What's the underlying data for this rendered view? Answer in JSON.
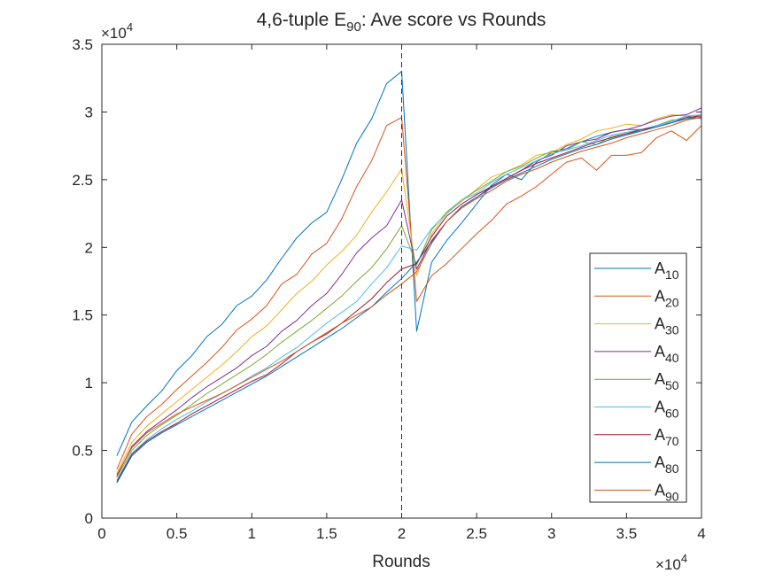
{
  "chart_data": {
    "type": "line",
    "title": {
      "text": "4,6-tuple E",
      "subscript": "90",
      "suffix": ": Ave score vs Rounds"
    },
    "xlabel": "Rounds",
    "ylabel": "",
    "x_exponent_label": "×10",
    "x_exponent_power": "4",
    "y_exponent_label": "×10",
    "y_exponent_power": "4",
    "xlim": [
      0,
      40000
    ],
    "ylim": [
      0,
      35000
    ],
    "x_ticks": [
      0,
      5000,
      10000,
      15000,
      20000,
      25000,
      30000,
      35000,
      40000
    ],
    "x_tick_labels": [
      "0",
      "0.5",
      "1",
      "1.5",
      "2",
      "2.5",
      "3",
      "3.5",
      "4"
    ],
    "y_ticks": [
      0,
      5000,
      10000,
      15000,
      20000,
      25000,
      30000,
      35000
    ],
    "y_tick_labels": [
      "0",
      "0.5",
      "1",
      "1.5",
      "2",
      "2.5",
      "3",
      "3.5"
    ],
    "grid": false,
    "legend_position": "bottom-right",
    "vertical_line": {
      "x": 20000,
      "style": "dashed"
    },
    "x": [
      1000,
      2000,
      3000,
      4000,
      5000,
      6000,
      7000,
      8000,
      9000,
      10000,
      11000,
      12000,
      13000,
      14000,
      15000,
      16000,
      17000,
      18000,
      19000,
      20000,
      21000,
      22000,
      23000,
      24000,
      25000,
      26000,
      27000,
      28000,
      29000,
      30000,
      31000,
      32000,
      33000,
      34000,
      35000,
      36000,
      37000,
      38000,
      39000,
      40000
    ],
    "series": [
      {
        "name": "A",
        "sub": "10",
        "color": "#0072BD",
        "values": [
          4600,
          7100,
          8300,
          9400,
          10900,
          12000,
          13400,
          14300,
          15700,
          16400,
          17600,
          19200,
          20700,
          21800,
          22600,
          25000,
          27700,
          29500,
          32100,
          33000,
          13800,
          18900,
          20500,
          21800,
          23200,
          24600,
          25400,
          25000,
          26300,
          27000,
          27300,
          27800,
          28200,
          28500,
          28700,
          28700,
          29000,
          29300,
          29700,
          29500
        ]
      },
      {
        "name": "A",
        "sub": "20",
        "color": "#D95319",
        "values": [
          3600,
          6200,
          7500,
          8400,
          9500,
          10500,
          11500,
          12600,
          13900,
          14700,
          15700,
          17300,
          18000,
          19500,
          20300,
          22100,
          24500,
          26400,
          29000,
          29600,
          16000,
          17900,
          18800,
          19900,
          21000,
          22000,
          23200,
          23800,
          24500,
          25400,
          26300,
          26600,
          25700,
          26800,
          26800,
          27000,
          28100,
          28600,
          27900,
          29000
        ]
      },
      {
        "name": "A",
        "sub": "30",
        "color": "#EDB120",
        "values": [
          3300,
          5600,
          6800,
          7700,
          8600,
          9500,
          10400,
          11300,
          12300,
          13400,
          14200,
          15400,
          16600,
          17500,
          18700,
          19700,
          20900,
          22600,
          24100,
          25800,
          17900,
          21000,
          22500,
          23400,
          24300,
          25200,
          25600,
          26100,
          26800,
          27000,
          27600,
          28000,
          28600,
          28800,
          29100,
          29000,
          29500,
          29800,
          29700,
          29800
        ]
      },
      {
        "name": "A",
        "sub": "40",
        "color": "#7E2F8E",
        "values": [
          3100,
          5300,
          6400,
          7200,
          8000,
          8900,
          9700,
          10400,
          11100,
          12000,
          12700,
          13800,
          14600,
          15700,
          16600,
          18000,
          19600,
          20700,
          21600,
          23500,
          18400,
          20500,
          21900,
          23000,
          23700,
          24500,
          25100,
          25700,
          26400,
          26800,
          27500,
          27800,
          28000,
          28500,
          28700,
          29000,
          29400,
          29700,
          29800,
          30300
        ]
      },
      {
        "name": "A",
        "sub": "50",
        "color": "#77AC30",
        "values": [
          3000,
          5000,
          6100,
          6900,
          7600,
          8400,
          9200,
          9900,
          10600,
          11300,
          12100,
          13000,
          13800,
          14600,
          15500,
          16400,
          17500,
          18500,
          19900,
          21600,
          18700,
          21300,
          22600,
          23500,
          24200,
          24900,
          25600,
          26000,
          26600,
          27100,
          27200,
          27800,
          27600,
          28200,
          28400,
          28600,
          29000,
          29400,
          29500,
          29800
        ]
      },
      {
        "name": "A",
        "sub": "60",
        "color": "#4DBEEE",
        "values": [
          2800,
          4800,
          5800,
          6600,
          7300,
          7900,
          8600,
          9200,
          9800,
          10500,
          11100,
          11900,
          12600,
          13500,
          14400,
          15200,
          16000,
          17300,
          18500,
          20100,
          19800,
          21400,
          22500,
          23500,
          24000,
          24800,
          25400,
          25900,
          26400,
          26900,
          27200,
          27500,
          27900,
          28300,
          28500,
          28700,
          29000,
          29300,
          29700,
          29800
        ]
      },
      {
        "name": "A",
        "sub": "70",
        "color": "#A2142F",
        "values": [
          2700,
          4700,
          5700,
          6400,
          7000,
          7700,
          8300,
          8900,
          9500,
          10100,
          10600,
          11400,
          12300,
          13000,
          13600,
          14400,
          15300,
          16200,
          17400,
          18400,
          18800,
          20800,
          22300,
          23200,
          23900,
          24500,
          25100,
          25700,
          26200,
          26600,
          27000,
          27400,
          27800,
          28100,
          28400,
          28700,
          28900,
          29200,
          29600,
          29700
        ]
      },
      {
        "name": "A",
        "sub": "80",
        "color": "#0072BD",
        "values": [
          2600,
          4600,
          5600,
          6300,
          6900,
          7500,
          8100,
          8700,
          9300,
          9900,
          10500,
          11200,
          11900,
          12600,
          13300,
          14000,
          14800,
          15600,
          16700,
          17700,
          18900,
          20400,
          21900,
          23000,
          23700,
          24400,
          25000,
          25500,
          26000,
          26500,
          26900,
          27300,
          27600,
          28000,
          28300,
          28600,
          28900,
          29200,
          29500,
          29600
        ]
      },
      {
        "name": "A",
        "sub": "90",
        "color": "#D95319",
        "values": [
          3200,
          5200,
          6300,
          7000,
          7700,
          8200,
          8700,
          9200,
          9800,
          10400,
          11000,
          11600,
          12300,
          13000,
          13700,
          14400,
          15000,
          15600,
          16500,
          17300,
          18200,
          20300,
          21900,
          22900,
          23600,
          24200,
          24900,
          25400,
          25800,
          26300,
          26700,
          27100,
          27400,
          27700,
          28100,
          28400,
          28700,
          29000,
          29400,
          29600
        ]
      }
    ]
  }
}
